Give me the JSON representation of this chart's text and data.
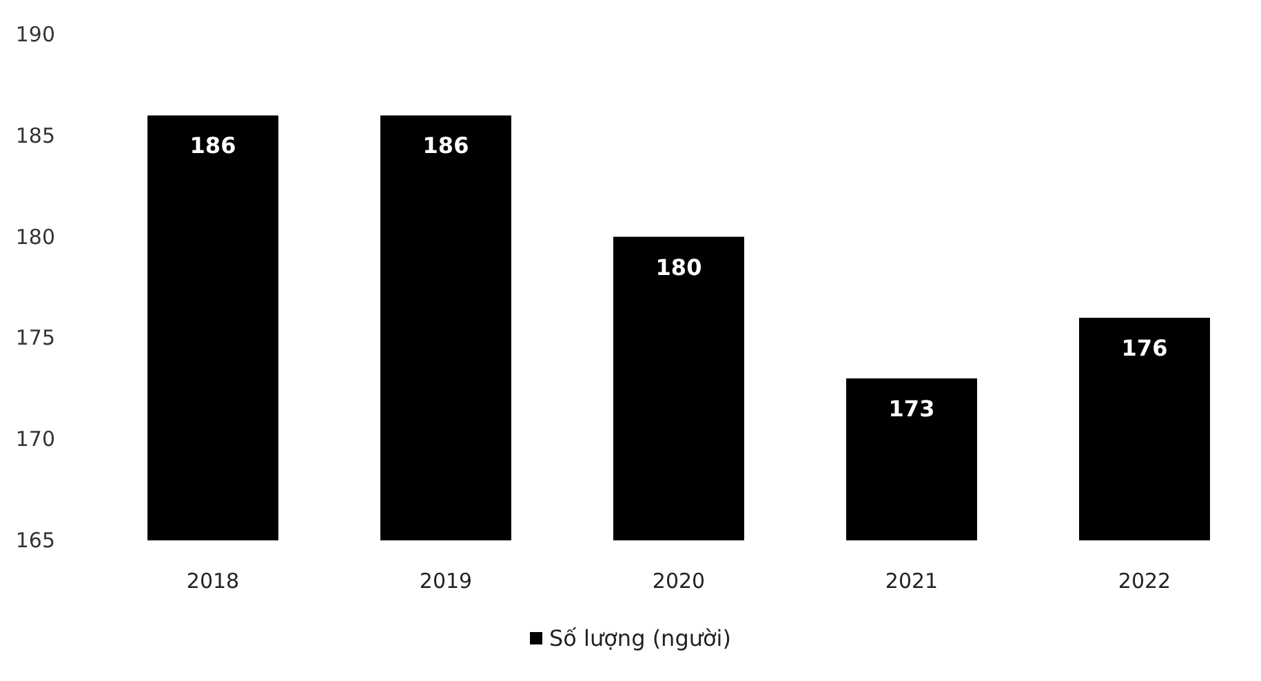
{
  "chart_data": {
    "type": "bar",
    "categories": [
      "2018",
      "2019",
      "2020",
      "2021",
      "2022"
    ],
    "series": [
      {
        "name": "Số lượng (người)",
        "color": "#000000",
        "values": [
          186,
          186,
          180,
          173,
          176
        ]
      }
    ],
    "ylim": [
      165,
      190
    ],
    "yticks": [
      165,
      170,
      175,
      180,
      185,
      190
    ],
    "grid": false,
    "legend": "bottom",
    "data_labels": true
  }
}
